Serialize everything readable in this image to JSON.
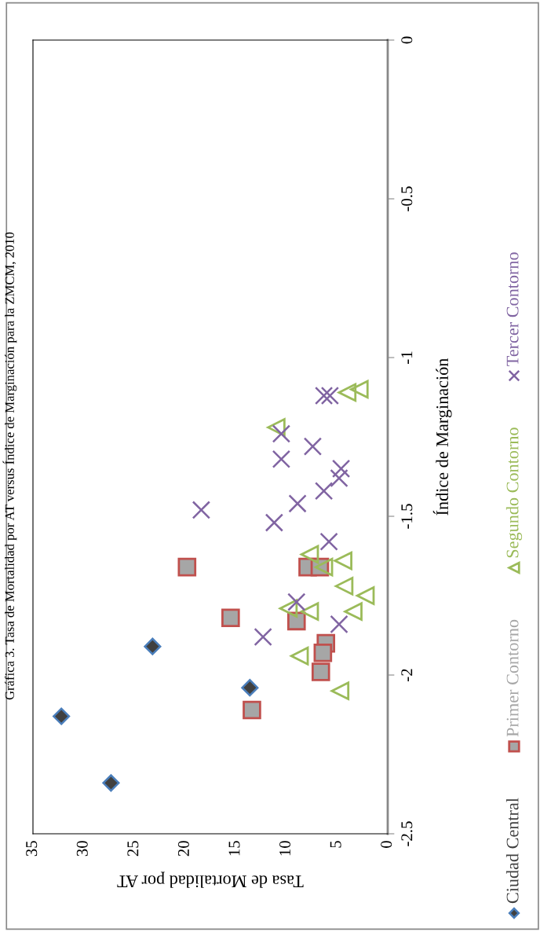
{
  "chart_data": {
    "type": "scatter",
    "title": "Gráfica 3. Tasa de Mortalidad por AT versus Índice de Marginación para la ZMCM, 2010",
    "xlabel": "Tasa de Mortalidad por AT",
    "ylabel": "Índice de Marginación",
    "xlim": [
      35,
      0
    ],
    "xticks": [
      0,
      5,
      10,
      15,
      20,
      25,
      30,
      35
    ],
    "ylim": [
      -2.5,
      0
    ],
    "yticks": [
      -2.5,
      -2,
      -1.5,
      -1,
      -0.5,
      0
    ],
    "grid": false,
    "legend": "bottom",
    "series": [
      {
        "name": "Ciudad Central",
        "color": "#404040",
        "marker": "diamond",
        "x": [
          32.2,
          27.3,
          23.2,
          13.6
        ],
        "values": [
          -2.13,
          -2.34,
          -1.91,
          -2.04
        ]
      },
      {
        "name": "Primer Contorno",
        "color": "#a6a6a6",
        "marker": "square",
        "x": [
          19.8,
          15.5,
          13.4,
          7.9,
          6.7,
          9.0,
          6.1,
          6.4,
          6.6
        ],
        "values": [
          -1.66,
          -1.82,
          -2.11,
          -1.66,
          -1.66,
          -1.83,
          -1.9,
          -1.93,
          -1.99
        ]
      },
      {
        "name": "Segundo Contorno",
        "color": "#9bbb59",
        "marker": "triangle",
        "x": [
          7.7,
          6.3,
          4.4,
          4.3,
          2.2,
          3.4,
          9.8,
          7.7,
          8.7,
          4.7,
          4.0,
          2.8,
          11.0
        ],
        "values": [
          -1.62,
          -1.66,
          -1.64,
          -1.72,
          -1.75,
          -1.8,
          -1.79,
          -1.8,
          -1.94,
          -2.05,
          -1.11,
          -1.1,
          -1.22
        ]
      },
      {
        "name": "Tercer Contorno",
        "color": "#8064a2",
        "marker": "cross",
        "x": [
          6.3,
          5.7,
          10.5,
          7.4,
          10.5,
          4.6,
          4.8,
          6.3,
          8.9,
          18.4,
          11.2,
          5.8,
          9.0,
          4.8,
          12.3
        ],
        "values": [
          -1.12,
          -1.12,
          -1.24,
          -1.28,
          -1.32,
          -1.35,
          -1.38,
          -1.42,
          -1.46,
          -1.48,
          -1.52,
          -1.58,
          -1.77,
          -1.84,
          -1.88
        ]
      }
    ]
  }
}
